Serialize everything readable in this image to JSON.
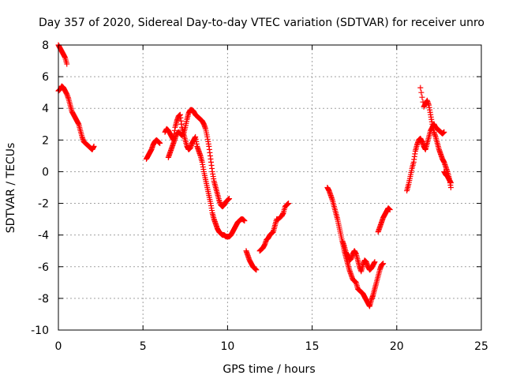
{
  "chart_data": {
    "type": "scatter",
    "title": "Day 357 of 2020, Sidereal Day-to-day VTEC variation (SDTVAR) for receiver unro",
    "xlabel": "GPS time / hours",
    "ylabel": "SDTVAR / TECUs",
    "xlim": [
      0,
      25
    ],
    "ylim": [
      -10,
      8
    ],
    "xticks": [
      "0",
      "5",
      "10",
      "15",
      "20",
      "25"
    ],
    "yticks": [
      "-10",
      "-8",
      "-6",
      "-4",
      "-2",
      "0",
      "2",
      "4",
      "6",
      "8"
    ],
    "grid": true,
    "marker": "+",
    "color": "#ff0000",
    "series": [
      {
        "name": "SDTVAR",
        "segments": [
          [
            [
              0.0,
              8.0
            ],
            [
              0.1,
              7.8
            ],
            [
              0.2,
              7.6
            ],
            [
              0.3,
              7.4
            ],
            [
              0.4,
              7.2
            ],
            [
              0.5,
              6.8
            ]
          ],
          [
            [
              0.0,
              5.1
            ],
            [
              0.1,
              5.2
            ],
            [
              0.2,
              5.4
            ],
            [
              0.3,
              5.3
            ],
            [
              0.4,
              5.1
            ],
            [
              0.5,
              4.9
            ],
            [
              0.6,
              4.6
            ],
            [
              0.7,
              4.2
            ],
            [
              0.8,
              3.8
            ],
            [
              0.9,
              3.6
            ],
            [
              1.0,
              3.4
            ],
            [
              1.1,
              3.2
            ],
            [
              1.2,
              3.0
            ],
            [
              1.3,
              2.6
            ],
            [
              1.4,
              2.2
            ],
            [
              1.5,
              1.9
            ],
            [
              1.6,
              1.8
            ],
            [
              1.7,
              1.7
            ],
            [
              1.8,
              1.6
            ],
            [
              1.9,
              1.5
            ],
            [
              2.0,
              1.4
            ],
            [
              2.1,
              1.6
            ]
          ],
          [
            [
              5.2,
              0.8
            ],
            [
              5.3,
              1.0
            ],
            [
              5.4,
              1.2
            ],
            [
              5.5,
              1.4
            ],
            [
              5.6,
              1.7
            ],
            [
              5.7,
              1.9
            ],
            [
              5.8,
              2.0
            ],
            [
              5.9,
              1.9
            ],
            [
              6.0,
              1.8
            ]
          ],
          [
            [
              6.3,
              2.5
            ],
            [
              6.4,
              2.7
            ],
            [
              6.5,
              2.6
            ],
            [
              6.6,
              2.4
            ],
            [
              6.7,
              2.2
            ],
            [
              6.8,
              2.0
            ],
            [
              6.9,
              2.8
            ],
            [
              7.0,
              3.2
            ],
            [
              7.1,
              3.5
            ],
            [
              7.2,
              3.6
            ],
            [
              7.3,
              2.8
            ],
            [
              7.4,
              2.4
            ],
            [
              7.5,
              2.0
            ],
            [
              7.6,
              1.6
            ],
            [
              7.7,
              1.4
            ],
            [
              7.8,
              1.5
            ],
            [
              7.9,
              1.8
            ],
            [
              8.0,
              2.0
            ],
            [
              8.1,
              2.2
            ],
            [
              8.2,
              1.6
            ],
            [
              8.3,
              1.3
            ],
            [
              8.4,
              1.0
            ],
            [
              8.5,
              0.6
            ],
            [
              8.6,
              0.0
            ],
            [
              8.7,
              -0.5
            ],
            [
              8.8,
              -1.0
            ],
            [
              8.9,
              -1.5
            ],
            [
              9.0,
              -2.0
            ],
            [
              9.1,
              -2.6
            ],
            [
              9.2,
              -3.0
            ],
            [
              9.3,
              -3.3
            ],
            [
              9.4,
              -3.6
            ],
            [
              9.5,
              -3.8
            ],
            [
              9.6,
              -3.9
            ],
            [
              9.7,
              -4.0
            ],
            [
              9.8,
              -4.0
            ],
            [
              9.9,
              -4.1
            ],
            [
              10.0,
              -4.1
            ],
            [
              10.1,
              -4.1
            ],
            [
              10.2,
              -4.0
            ],
            [
              10.3,
              -3.8
            ],
            [
              10.4,
              -3.6
            ],
            [
              10.5,
              -3.4
            ],
            [
              10.6,
              -3.2
            ],
            [
              10.7,
              -3.1
            ],
            [
              10.8,
              -3.0
            ],
            [
              10.9,
              -3.0
            ],
            [
              11.0,
              -3.1
            ]
          ],
          [
            [
              6.5,
              0.9
            ],
            [
              6.6,
              1.2
            ],
            [
              6.7,
              1.5
            ],
            [
              6.8,
              1.8
            ],
            [
              6.9,
              2.1
            ],
            [
              7.0,
              2.4
            ],
            [
              7.1,
              2.5
            ],
            [
              7.2,
              2.4
            ],
            [
              7.3,
              2.3
            ],
            [
              7.4,
              2.4
            ],
            [
              7.5,
              2.8
            ],
            [
              7.6,
              3.3
            ],
            [
              7.7,
              3.7
            ],
            [
              7.8,
              3.9
            ],
            [
              7.9,
              3.9
            ],
            [
              8.0,
              3.8
            ],
            [
              8.1,
              3.6
            ],
            [
              8.2,
              3.5
            ],
            [
              8.3,
              3.4
            ],
            [
              8.4,
              3.3
            ],
            [
              8.5,
              3.2
            ],
            [
              8.6,
              3.0
            ],
            [
              8.7,
              2.7
            ],
            [
              8.8,
              2.2
            ],
            [
              8.9,
              1.6
            ],
            [
              9.0,
              0.8
            ],
            [
              9.1,
              0.0
            ],
            [
              9.2,
              -0.6
            ],
            [
              9.3,
              -1.0
            ],
            [
              9.4,
              -1.4
            ],
            [
              9.5,
              -1.8
            ],
            [
              9.6,
              -2.1
            ],
            [
              9.7,
              -2.2
            ],
            [
              9.8,
              -2.1
            ],
            [
              9.9,
              -1.9
            ],
            [
              10.0,
              -1.8
            ],
            [
              10.1,
              -1.7
            ]
          ],
          [
            [
              11.1,
              -5.0
            ],
            [
              11.2,
              -5.3
            ],
            [
              11.3,
              -5.6
            ],
            [
              11.4,
              -5.8
            ],
            [
              11.5,
              -6.0
            ],
            [
              11.6,
              -6.1
            ],
            [
              11.7,
              -6.2
            ]
          ],
          [
            [
              11.9,
              -5.0
            ],
            [
              12.0,
              -4.9
            ],
            [
              12.1,
              -4.8
            ],
            [
              12.2,
              -4.6
            ],
            [
              12.3,
              -4.3
            ],
            [
              12.4,
              -4.2
            ],
            [
              12.5,
              -4.0
            ],
            [
              12.6,
              -3.9
            ],
            [
              12.7,
              -3.8
            ],
            [
              12.8,
              -3.4
            ],
            [
              12.9,
              -3.0
            ],
            [
              13.0,
              -3.0
            ],
            [
              13.2,
              -2.8
            ],
            [
              13.3,
              -2.6
            ],
            [
              13.4,
              -2.2
            ],
            [
              13.5,
              -2.1
            ],
            [
              13.6,
              -2.0
            ]
          ],
          [
            [
              15.9,
              -1.0
            ],
            [
              16.0,
              -1.2
            ],
            [
              16.1,
              -1.5
            ],
            [
              16.2,
              -1.8
            ],
            [
              16.3,
              -2.2
            ],
            [
              16.4,
              -2.6
            ],
            [
              16.5,
              -3.0
            ],
            [
              16.6,
              -3.5
            ],
            [
              16.7,
              -4.0
            ],
            [
              16.8,
              -4.5
            ],
            [
              16.9,
              -5.0
            ],
            [
              17.0,
              -5.4
            ],
            [
              17.1,
              -5.8
            ],
            [
              17.2,
              -6.2
            ],
            [
              17.3,
              -6.5
            ],
            [
              17.4,
              -6.8
            ],
            [
              17.5,
              -6.9
            ],
            [
              17.6,
              -7.0
            ],
            [
              17.7,
              -7.4
            ],
            [
              17.8,
              -7.5
            ],
            [
              17.9,
              -7.6
            ],
            [
              18.0,
              -7.7
            ],
            [
              18.1,
              -7.9
            ],
            [
              18.2,
              -8.1
            ],
            [
              18.3,
              -8.3
            ],
            [
              18.4,
              -8.5
            ],
            [
              18.5,
              -8.1
            ],
            [
              18.6,
              -7.8
            ],
            [
              18.7,
              -7.4
            ],
            [
              18.8,
              -7.0
            ],
            [
              18.9,
              -6.6
            ],
            [
              19.0,
              -6.2
            ],
            [
              19.1,
              -5.9
            ],
            [
              19.2,
              -5.8
            ]
          ],
          [
            [
              16.8,
              -4.4
            ],
            [
              16.9,
              -4.7
            ],
            [
              17.0,
              -5.1
            ],
            [
              17.1,
              -5.3
            ],
            [
              17.2,
              -5.6
            ],
            [
              17.3,
              -5.5
            ],
            [
              17.4,
              -5.2
            ],
            [
              17.5,
              -5.0
            ],
            [
              17.6,
              -5.2
            ],
            [
              17.7,
              -5.6
            ],
            [
              17.8,
              -6.0
            ],
            [
              17.9,
              -6.3
            ],
            [
              18.0,
              -5.9
            ],
            [
              18.1,
              -5.6
            ],
            [
              18.2,
              -5.7
            ],
            [
              18.3,
              -6.0
            ],
            [
              18.4,
              -6.2
            ],
            [
              18.5,
              -6.1
            ],
            [
              18.6,
              -5.9
            ],
            [
              18.7,
              -5.7
            ]
          ],
          [
            [
              18.9,
              -3.8
            ],
            [
              19.0,
              -3.5
            ],
            [
              19.1,
              -3.2
            ],
            [
              19.2,
              -2.9
            ],
            [
              19.3,
              -2.7
            ],
            [
              19.4,
              -2.5
            ],
            [
              19.5,
              -2.3
            ],
            [
              19.6,
              -2.4
            ]
          ],
          [
            [
              20.6,
              -1.2
            ],
            [
              20.7,
              -0.8
            ],
            [
              20.8,
              -0.3
            ],
            [
              20.9,
              0.2
            ],
            [
              21.0,
              0.6
            ],
            [
              21.1,
              1.3
            ],
            [
              21.2,
              1.7
            ],
            [
              21.3,
              2.0
            ],
            [
              21.4,
              2.1
            ],
            [
              21.5,
              1.9
            ],
            [
              21.6,
              1.6
            ],
            [
              21.7,
              1.4
            ],
            [
              21.8,
              1.8
            ],
            [
              21.9,
              2.2
            ],
            [
              22.0,
              2.6
            ],
            [
              22.1,
              2.8
            ],
            [
              22.2,
              3.0
            ],
            [
              22.3,
              2.8
            ],
            [
              22.4,
              2.7
            ],
            [
              22.5,
              2.6
            ],
            [
              22.6,
              2.5
            ],
            [
              22.7,
              2.4
            ],
            [
              22.8,
              2.5
            ]
          ],
          [
            [
              21.4,
              5.3
            ],
            [
              21.6,
              4.1
            ],
            [
              21.7,
              4.3
            ],
            [
              21.8,
              4.5
            ],
            [
              21.9,
              4.2
            ],
            [
              22.0,
              3.6
            ],
            [
              22.1,
              3.0
            ],
            [
              22.2,
              2.5
            ],
            [
              22.3,
              2.2
            ],
            [
              22.4,
              1.8
            ],
            [
              22.5,
              1.4
            ],
            [
              22.6,
              1.1
            ],
            [
              22.7,
              0.8
            ],
            [
              22.8,
              0.6
            ],
            [
              22.9,
              0.3
            ],
            [
              23.0,
              0.0
            ],
            [
              23.1,
              -0.4
            ],
            [
              23.2,
              -1.0
            ]
          ],
          [
            [
              22.8,
              0.0
            ],
            [
              22.9,
              -0.2
            ],
            [
              23.0,
              -0.3
            ],
            [
              23.1,
              -0.5
            ],
            [
              23.2,
              -0.7
            ]
          ]
        ]
      }
    ]
  }
}
